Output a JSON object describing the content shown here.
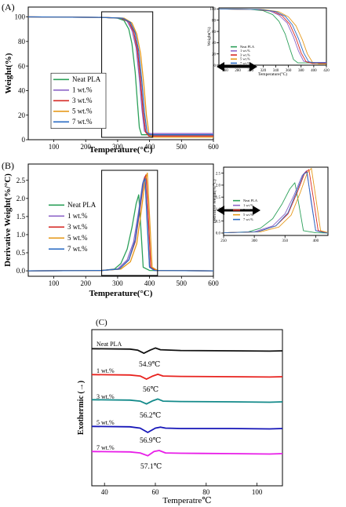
{
  "panels": [
    {
      "id": "A",
      "panel_label": "(A)",
      "main": {
        "xlabel": "Temperature(°C)",
        "ylabel": "Weight(%)",
        "xlim": [
          20,
          600
        ],
        "ylim": [
          0,
          108
        ],
        "xticks": [
          100,
          200,
          300,
          400,
          500,
          600
        ],
        "yticks": [
          0,
          20,
          40,
          60,
          80,
          100
        ],
        "legend": [
          "Neat PLA",
          "1 wt.%",
          "3 wt.%",
          "5 wt.%",
          "7 wt.%"
        ],
        "zoom_box": [
          250,
          410
        ]
      },
      "inset": {
        "xlabel": "Temperature(°C)",
        "ylabel": "Weight(%)",
        "xlim": [
          250,
          420
        ],
        "ylim": [
          0,
          102
        ],
        "xticks": [
          260,
          280,
          300,
          320,
          340,
          360,
          380,
          400,
          420
        ],
        "yticks": [
          0,
          20,
          40,
          60,
          80,
          100
        ],
        "legend": [
          "Neat PLA",
          "1 wt.%",
          "3 wt.%",
          "5 wt.%",
          "7 wt.%"
        ]
      }
    },
    {
      "id": "B",
      "panel_label": "(B)",
      "main": {
        "xlabel": "Temperature(°C)",
        "ylabel": "Derivative Weight(%/°C)",
        "xlim": [
          20,
          600
        ],
        "ylim": [
          -0.15,
          2.95
        ],
        "xticks": [
          100,
          200,
          300,
          400,
          500,
          600
        ],
        "yticks": [
          0.0,
          0.5,
          1.0,
          1.5,
          2.0,
          2.5
        ],
        "ytick_labels": [
          "0.0",
          "0.5",
          "1.0",
          "1.5",
          "2.0",
          "2.5"
        ],
        "legend": [
          "Neat PLA",
          "1 wt.%",
          "3 wt.%",
          "5 wt.%",
          "7 wt.%"
        ],
        "zoom_box": [
          250,
          425
        ]
      },
      "inset": {
        "xlabel": "Temperature(°C)",
        "ylabel": "Derivative Weight(%/°C)",
        "xlim": [
          250,
          420
        ],
        "ylim": [
          -0.1,
          2.75
        ],
        "xticks": [
          250,
          300,
          350,
          400
        ],
        "yticks": [
          0.0,
          0.5,
          1.0,
          1.5,
          2.0,
          2.5
        ],
        "ytick_labels": [
          "0.0",
          "0.5",
          "1.0",
          "1.5",
          "2.0",
          "2.5"
        ],
        "legend": [
          "Neat PLA",
          "1 wt.%",
          "3 wt.%",
          "5 wt.%",
          "7 wt.%"
        ]
      }
    },
    {
      "id": "C",
      "panel_label": "(C)",
      "main": {
        "xlabel": "Temperatre℃",
        "ylabel": "Exothermic (→)",
        "xlim": [
          35,
          110
        ],
        "xticks": [
          40,
          60,
          80,
          100
        ]
      }
    }
  ],
  "colors": {
    "Neat PLA": "#2ca05a",
    "1 wt.%": "#8e66c8",
    "3 wt.%": "#d62a26",
    "5 wt.%": "#e69a1c",
    "7 wt.%": "#2b6cc4",
    "dsc_neat": "#111111",
    "dsc_1": "#e8231f",
    "dsc_3": "#138a8a",
    "dsc_5": "#1616b8",
    "dsc_7": "#e81ee8"
  },
  "chart_data": [
    {
      "type": "line",
      "title": "",
      "xlabel": "Temperature(°C)",
      "ylabel": "Weight(%)",
      "xlim": [
        20,
        600
      ],
      "ylim": [
        0,
        108
      ],
      "grid": false,
      "legend_position": "bottom-left",
      "series": [
        {
          "name": "Neat PLA",
          "x": [
            20,
            250,
            300,
            320,
            335,
            345,
            355,
            362,
            368,
            375,
            390,
            600
          ],
          "y": [
            100,
            99.6,
            99,
            97,
            90,
            78,
            55,
            30,
            10,
            4,
            4,
            4
          ]
        },
        {
          "name": "1 wt.%",
          "x": [
            20,
            250,
            310,
            330,
            345,
            358,
            368,
            376,
            384,
            395,
            600
          ],
          "y": [
            100,
            99.6,
            99,
            96.5,
            89,
            75,
            50,
            25,
            7,
            5,
            5
          ]
        },
        {
          "name": "3 wt.%",
          "x": [
            20,
            250,
            310,
            335,
            350,
            362,
            372,
            380,
            388,
            398,
            600
          ],
          "y": [
            100,
            99.6,
            99,
            96,
            88,
            73,
            48,
            22,
            6,
            3,
            3
          ]
        },
        {
          "name": "5 wt.%",
          "x": [
            20,
            250,
            320,
            345,
            360,
            372,
            382,
            390,
            398,
            408,
            600
          ],
          "y": [
            100,
            99.6,
            99,
            95,
            86,
            70,
            45,
            20,
            5,
            2,
            2
          ]
        },
        {
          "name": "7 wt.%",
          "x": [
            20,
            250,
            315,
            340,
            355,
            366,
            376,
            384,
            392,
            402,
            600
          ],
          "y": [
            100,
            99.6,
            99,
            95.5,
            87,
            72,
            47,
            22,
            6,
            4,
            4
          ]
        }
      ]
    },
    {
      "type": "line",
      "title": "",
      "xlabel": "Temperature(°C)",
      "ylabel": "Weight(%)",
      "xlim": [
        250,
        420
      ],
      "ylim": [
        0,
        102
      ],
      "grid": false,
      "legend_position": "bottom-left",
      "series": [
        {
          "name": "Neat PLA",
          "x": [
            250,
            300,
            320,
            335,
            345,
            355,
            362,
            368,
            375,
            390,
            420
          ],
          "y": [
            100,
            99,
            97,
            90,
            78,
            55,
            30,
            10,
            4,
            4,
            4
          ]
        },
        {
          "name": "1 wt.%",
          "x": [
            250,
            310,
            330,
            345,
            358,
            368,
            376,
            384,
            395,
            420
          ],
          "y": [
            100,
            99,
            96.5,
            89,
            75,
            50,
            25,
            7,
            5,
            5
          ]
        },
        {
          "name": "3 wt.%",
          "x": [
            250,
            310,
            335,
            350,
            362,
            372,
            380,
            388,
            398,
            420
          ],
          "y": [
            100,
            99,
            96,
            88,
            73,
            48,
            22,
            6,
            3,
            3
          ]
        },
        {
          "name": "5 wt.%",
          "x": [
            250,
            320,
            345,
            360,
            372,
            382,
            390,
            398,
            408,
            420
          ],
          "y": [
            100,
            99,
            95,
            86,
            70,
            45,
            20,
            5,
            2,
            2
          ]
        },
        {
          "name": "7 wt.%",
          "x": [
            250,
            315,
            340,
            355,
            366,
            376,
            384,
            392,
            402,
            420
          ],
          "y": [
            100,
            99,
            95.5,
            87,
            72,
            47,
            22,
            6,
            4,
            4
          ]
        }
      ]
    },
    {
      "type": "line",
      "title": "",
      "xlabel": "Temperature(°C)",
      "ylabel": "Derivative Weight(%/°C)",
      "xlim": [
        20,
        600
      ],
      "ylim": [
        -0.15,
        2.95
      ],
      "grid": false,
      "legend_position": "left",
      "series": [
        {
          "name": "Neat PLA",
          "x": [
            20,
            250,
            290,
            310,
            330,
            345,
            358,
            366,
            372,
            380,
            400,
            600
          ],
          "y": [
            0,
            0.01,
            0.05,
            0.2,
            0.6,
            1.2,
            1.85,
            2.1,
            1.3,
            0.1,
            0.01,
            0
          ]
        },
        {
          "name": "1 wt.%",
          "x": [
            20,
            250,
            300,
            330,
            350,
            365,
            378,
            385,
            392,
            400,
            420,
            600
          ],
          "y": [
            0,
            0.01,
            0.05,
            0.3,
            0.8,
            1.6,
            2.4,
            2.6,
            1.5,
            0.1,
            0.01,
            0
          ]
        },
        {
          "name": "3 wt.%",
          "x": [
            20,
            250,
            305,
            335,
            355,
            370,
            382,
            389,
            396,
            404,
            420,
            600
          ],
          "y": [
            0,
            0.01,
            0.05,
            0.3,
            0.8,
            1.7,
            2.5,
            2.65,
            1.5,
            0.1,
            0.01,
            0
          ]
        },
        {
          "name": "5 wt.%",
          "x": [
            20,
            250,
            310,
            340,
            360,
            375,
            386,
            393,
            400,
            408,
            425,
            600
          ],
          "y": [
            0,
            0.01,
            0.05,
            0.25,
            0.75,
            1.7,
            2.5,
            2.7,
            1.5,
            0.1,
            0.01,
            0
          ]
        },
        {
          "name": "7 wt.%",
          "x": [
            20,
            250,
            305,
            335,
            355,
            370,
            380,
            386,
            392,
            400,
            415,
            600
          ],
          "y": [
            0,
            0.01,
            0.05,
            0.3,
            0.85,
            1.8,
            2.45,
            2.55,
            1.4,
            0.1,
            0.01,
            0
          ]
        }
      ]
    },
    {
      "type": "line",
      "title": "",
      "xlabel": "Temperature(°C)",
      "ylabel": "Derivative Weight(%/°C)",
      "xlim": [
        250,
        420
      ],
      "ylim": [
        -0.1,
        2.75
      ],
      "grid": false,
      "legend_position": "left",
      "series": [
        {
          "name": "Neat PLA",
          "x": [
            250,
            290,
            310,
            330,
            345,
            358,
            366,
            372,
            380,
            400,
            420
          ],
          "y": [
            0.01,
            0.05,
            0.2,
            0.6,
            1.2,
            1.85,
            2.1,
            1.3,
            0.1,
            0.01,
            0
          ]
        },
        {
          "name": "1 wt.%",
          "x": [
            250,
            300,
            330,
            350,
            365,
            378,
            385,
            392,
            400,
            420
          ],
          "y": [
            0.01,
            0.05,
            0.3,
            0.8,
            1.6,
            2.4,
            2.6,
            1.5,
            0.1,
            0.01
          ]
        },
        {
          "name": "3 wt.%",
          "x": [
            250,
            305,
            335,
            355,
            370,
            382,
            389,
            396,
            404,
            420
          ],
          "y": [
            0.01,
            0.05,
            0.3,
            0.8,
            1.7,
            2.5,
            2.65,
            1.5,
            0.1,
            0.01
          ]
        },
        {
          "name": "5 wt.%",
          "x": [
            250,
            310,
            340,
            360,
            375,
            386,
            393,
            400,
            408,
            420
          ],
          "y": [
            0.01,
            0.05,
            0.25,
            0.75,
            1.7,
            2.5,
            2.7,
            1.5,
            0.1,
            0.02
          ]
        },
        {
          "name": "7 wt.%",
          "x": [
            250,
            305,
            335,
            355,
            370,
            380,
            386,
            392,
            400,
            415,
            420
          ],
          "y": [
            0.01,
            0.05,
            0.3,
            0.85,
            1.8,
            2.45,
            2.55,
            1.4,
            0.1,
            0.01,
            0
          ]
        }
      ]
    },
    {
      "type": "line",
      "title": "",
      "xlabel": "Temperatre℃",
      "ylabel": "Exothermic (→)",
      "xlim": [
        35,
        110
      ],
      "grid": false,
      "series": [
        {
          "name": "Neat PLA",
          "label": "Neat PLA",
          "annotation": "54.9℃",
          "peak": 54.9,
          "x": [
            35,
            50,
            53,
            55.5,
            58,
            60,
            62,
            70,
            90,
            105,
            110
          ],
          "y": [
            0.3,
            0.25,
            0.1,
            -0.35,
            0.1,
            0.4,
            0.15,
            0.05,
            0.0,
            -0.05,
            0.0
          ]
        },
        {
          "name": "1 wt.%",
          "label": "1 wt.%",
          "annotation": "56℃",
          "peak": 56.0,
          "x": [
            35,
            50,
            54,
            56.5,
            59,
            61,
            63,
            70,
            90,
            105,
            110
          ],
          "y": [
            0.3,
            0.25,
            0.1,
            -0.35,
            0.1,
            0.35,
            0.1,
            0.05,
            0.0,
            -0.05,
            0.0
          ]
        },
        {
          "name": "3 wt.%",
          "label": "3 wt.%",
          "annotation": "56.2℃",
          "peak": 56.2,
          "x": [
            35,
            50,
            54,
            56.5,
            59,
            61,
            63,
            70,
            90,
            105,
            110
          ],
          "y": [
            0.3,
            0.25,
            0.1,
            -0.3,
            0.15,
            0.4,
            0.1,
            0.05,
            0.0,
            -0.05,
            0.0
          ]
        },
        {
          "name": "5 wt.%",
          "label": "5 wt.%",
          "annotation": "56.9℃",
          "peak": 56.9,
          "x": [
            35,
            50,
            54,
            57,
            60,
            62,
            64,
            70,
            90,
            105,
            110
          ],
          "y": [
            0.3,
            0.25,
            0.05,
            -0.55,
            0.05,
            0.2,
            0.05,
            0.0,
            0.0,
            -0.05,
            0.0
          ]
        },
        {
          "name": "7 wt.%",
          "label": "7 wt.%",
          "annotation": "57.1℃",
          "peak": 57.1,
          "x": [
            35,
            50,
            54,
            57,
            59.5,
            61.5,
            64,
            70,
            90,
            105,
            110
          ],
          "y": [
            0.3,
            0.25,
            0.1,
            -0.3,
            0.3,
            0.45,
            0.1,
            0.05,
            0.0,
            -0.05,
            0.0
          ]
        }
      ]
    }
  ]
}
